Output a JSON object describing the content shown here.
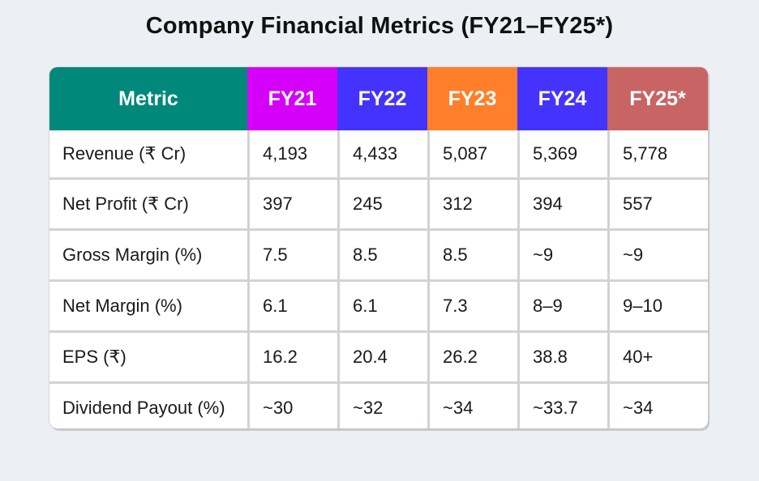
{
  "title": "Company Financial Metrics (FY21–FY25*)",
  "chart_data": {
    "type": "table",
    "columns": [
      {
        "label": "Metric",
        "color": "#00897b"
      },
      {
        "label": "FY21",
        "color": "#d500f9"
      },
      {
        "label": "FY22",
        "color": "#4433ff"
      },
      {
        "label": "FY23",
        "color": "#ff7f2a"
      },
      {
        "label": "FY24",
        "color": "#4433ff"
      },
      {
        "label": "FY25*",
        "color": "#c96464"
      }
    ],
    "rows": [
      {
        "metric": "Revenue (₹ Cr)",
        "values": [
          "4,193",
          "4,433",
          "5,087",
          "5,369",
          "5,778"
        ]
      },
      {
        "metric": "Net Profit (₹ Cr)",
        "values": [
          "397",
          "245",
          "312",
          "394",
          "557"
        ]
      },
      {
        "metric": "Gross Margin (%)",
        "values": [
          "7.5",
          "8.5",
          "8.5",
          "~9",
          "~9"
        ]
      },
      {
        "metric": "Net Margin (%)",
        "values": [
          "6.1",
          "6.1",
          "7.3",
          "8–9",
          "9–10"
        ]
      },
      {
        "metric": "EPS (₹)",
        "values": [
          "16.2",
          "20.4",
          "26.2",
          "38.8",
          "40+"
        ]
      },
      {
        "metric": "Dividend Payout (%)",
        "values": [
          "~30",
          "~32",
          "~34",
          "~33.7",
          "~34"
        ]
      }
    ]
  }
}
